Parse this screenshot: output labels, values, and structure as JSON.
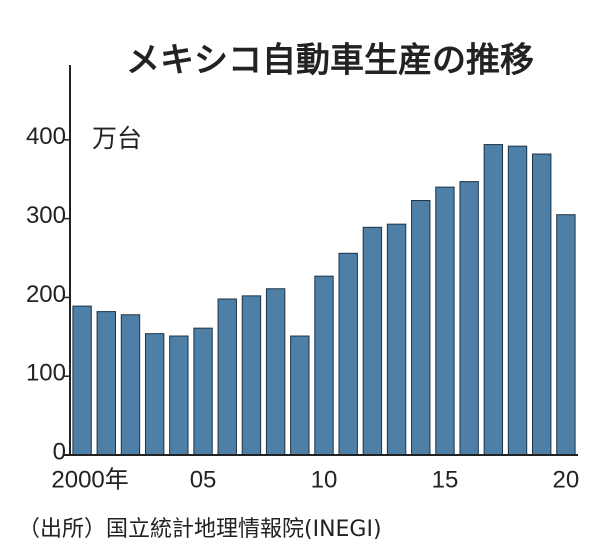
{
  "chart_data": {
    "type": "bar",
    "title": "メキシコ自動車生産の推移",
    "unit": "万台",
    "source": "（出所）国立統計地理情報院(INEGI)",
    "categories": [
      "2000年",
      null,
      null,
      null,
      null,
      "05",
      null,
      null,
      null,
      null,
      "10",
      null,
      null,
      null,
      null,
      "15",
      null,
      null,
      null,
      null,
      "20"
    ],
    "values": [
      189,
      182,
      178,
      154,
      151,
      161,
      198,
      202,
      211,
      151,
      227,
      256,
      289,
      293,
      323,
      340,
      347,
      394,
      392,
      382,
      305
    ],
    "color": "#4e7fa6",
    "ylim": [
      0,
      495
    ],
    "yticks": [
      0,
      100,
      200,
      300,
      400
    ]
  }
}
